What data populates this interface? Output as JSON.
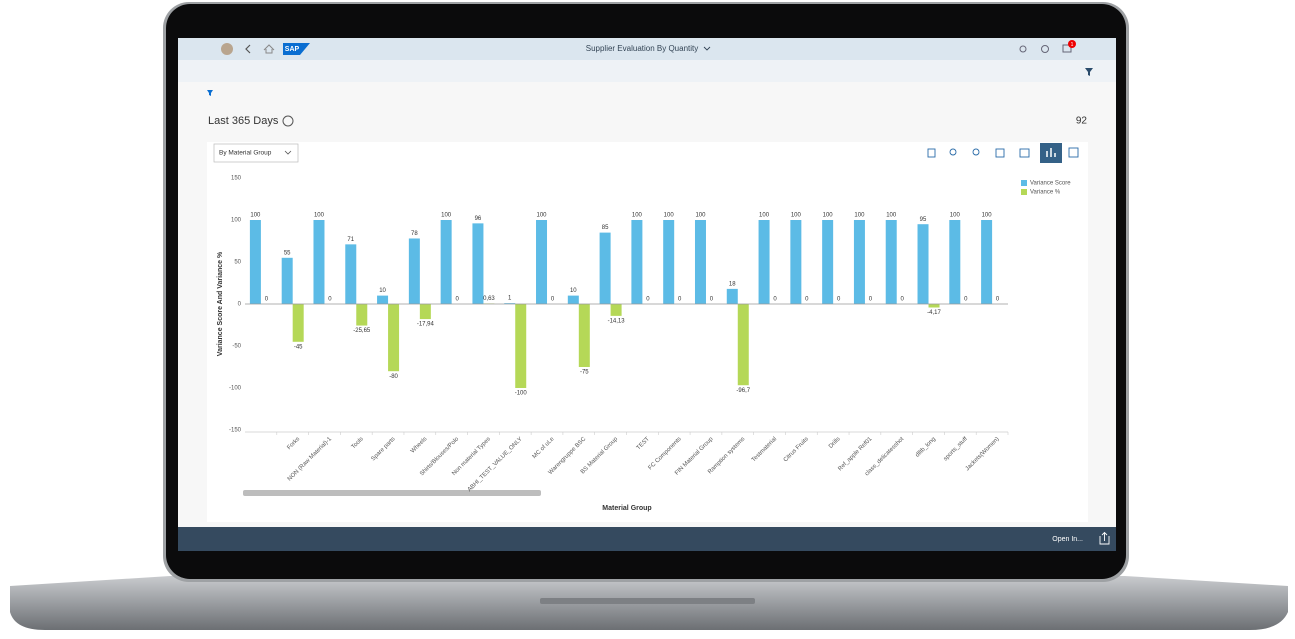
{
  "shell": {
    "logo": "SAP",
    "title": "Supplier Evaluation By Quantity",
    "notifications": 1
  },
  "page": {
    "period": "Last 365 Days",
    "count": 92,
    "selector": "By Material Group",
    "footer_action": "Open In..."
  },
  "chart_data": {
    "type": "bar",
    "y_label": "Variance Score And Variance %",
    "x_label": "Material Group",
    "categories": [
      null,
      "Forks",
      "NON (Raw Material)-1",
      "Tools",
      "Spare parts",
      "Wheels",
      "Shirts/Blouses/Polo",
      "Non material Types",
      "ABHI_TEST_VALUE_ONLY",
      "MC of uLe",
      "Warengruppe BSC",
      "BS Material Group",
      "TEST",
      "FC Components",
      "FIN Material Group",
      "Ramption systems",
      "Testmaterial",
      "Citrus Fruits",
      "Drills",
      "Ref_apple Ref01",
      "class_delicatesshot",
      "dlltb_long",
      "sports_stuff",
      "Jackets(Women)"
    ],
    "series": [
      {
        "name": "Variance Score",
        "color": "#5cbbe6",
        "values": [
          100,
          55,
          100,
          71,
          10,
          78,
          100,
          96,
          1,
          100,
          10,
          85,
          100,
          100,
          100,
          18,
          100,
          100,
          100,
          100,
          100,
          95,
          100,
          100
        ]
      },
      {
        "name": "Variance %",
        "color": "#b5d857",
        "values": [
          0,
          -45,
          0,
          -25.65,
          -80,
          -17.94,
          0,
          0.63,
          -100,
          0,
          -75,
          -14.13,
          0,
          0,
          0,
          -96.7,
          0,
          0,
          0,
          0,
          0,
          -4.17,
          0,
          0
        ],
        "value_labels": [
          "0",
          "-45",
          "0",
          "-25,65",
          "-80",
          "-17,94",
          "0",
          "0,63",
          "-100",
          "0",
          "-75",
          "-14,13",
          "0",
          "0",
          "0",
          "-96,7",
          "0",
          "0",
          "0",
          "0",
          "0",
          "-4,17",
          "0",
          "0"
        ]
      }
    ],
    "ylim": [
      -150,
      150
    ],
    "yticks": [
      -150,
      -100,
      -50,
      0,
      50,
      100,
      150
    ],
    "grid": false,
    "legend": "top-right"
  }
}
